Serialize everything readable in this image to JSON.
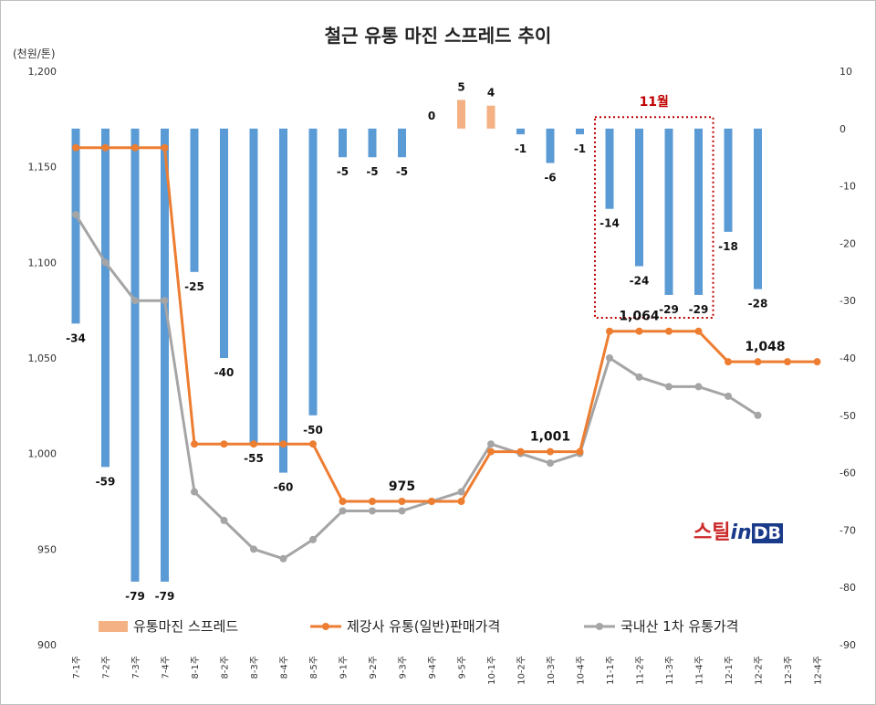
{
  "chart_data": {
    "type": "bar",
    "title": "철근 유통 마진 스프레드 추이",
    "ylabel_left": "(천원/톤)",
    "categories": [
      "7-1주",
      "7-2주",
      "7-3주",
      "7-4주",
      "8-1주",
      "8-2주",
      "8-3주",
      "8-4주",
      "8-5주",
      "9-1주",
      "9-2주",
      "9-3주",
      "9-4주",
      "9-5주",
      "10-1주",
      "10-2주",
      "10-3주",
      "10-4주",
      "11-1주",
      "11-2주",
      "11-3주",
      "11-4주",
      "12-1주",
      "12-2주",
      "12-3주",
      "12-4주"
    ],
    "ylim_left": [
      900,
      1200
    ],
    "yticks_left": [
      "900",
      "950",
      "1,000",
      "1,050",
      "1,100",
      "1,150",
      "1,200"
    ],
    "ylim_right": [
      -90,
      10
    ],
    "yticks_right": [
      "-90",
      "-80",
      "-70",
      "-60",
      "-50",
      "-40",
      "-30",
      "-20",
      "-10",
      "0",
      "10"
    ],
    "series": [
      {
        "name": "유통마진 스프레드",
        "axis": "right",
        "values": [
          -34,
          -59,
          -79,
          -79,
          -25,
          -40,
          -55,
          -60,
          -50,
          -5,
          -5,
          -5,
          0,
          5,
          4,
          -1,
          -6,
          -1,
          -14,
          -24,
          -29,
          -29,
          -18,
          -28,
          null,
          null
        ],
        "labels": [
          "-34",
          "-59",
          "-79",
          "-79",
          "-25",
          "-40",
          "-55",
          "-60",
          "-50",
          "-5",
          "-5",
          "-5",
          "0",
          "5",
          "4",
          "-1",
          "-6",
          "-1",
          "-14",
          "-24",
          "-29",
          "-29",
          "-18",
          "-28",
          "",
          ""
        ]
      },
      {
        "name": "제강사 유통(일반)판매가격",
        "axis": "left",
        "values": [
          1160,
          1160,
          1160,
          1160,
          1005,
          1005,
          1005,
          1005,
          1005,
          975,
          975,
          975,
          975,
          975,
          1001,
          1001,
          1001,
          1001,
          1064,
          1064,
          1064,
          1064,
          1048,
          1048,
          1048,
          1048
        ]
      },
      {
        "name": "국내산 1차 유통가격",
        "axis": "left",
        "values": [
          1125,
          1100,
          1080,
          1080,
          980,
          965,
          950,
          945,
          955,
          970,
          970,
          970,
          975,
          980,
          1005,
          1000,
          995,
          1000,
          1050,
          1040,
          1035,
          1035,
          1030,
          1020,
          null,
          null
        ]
      }
    ],
    "callouts": [
      {
        "label": "975",
        "index": 11
      },
      {
        "label": "1,001",
        "index": 16
      },
      {
        "label": "1,064",
        "index": 19
      },
      {
        "label": "1,048",
        "index": 23
      }
    ],
    "highlight": {
      "label": "11월",
      "from_index": 18,
      "to_index": 21
    },
    "colors": {
      "bar_neg": "#5b9bd5",
      "bar_pos": "#f4b183",
      "line1": "#ed7d31",
      "line2": "#a5a5a5",
      "highlight": "#c00000"
    },
    "legend_position": "bottom"
  },
  "logo": {
    "part1": "스틸",
    "part2": "in",
    "part3": "DB"
  }
}
